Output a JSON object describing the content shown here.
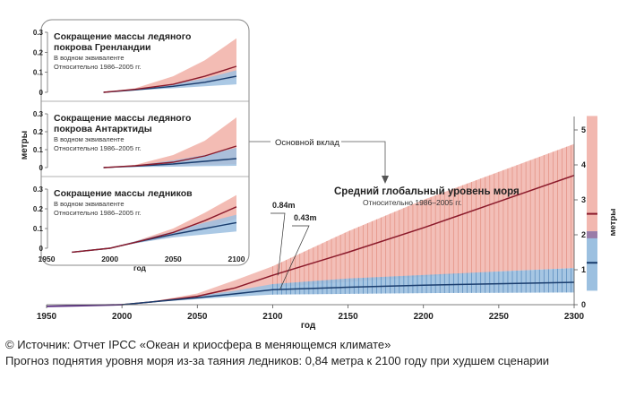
{
  "chart_data": [
    {
      "id": "main",
      "type": "area",
      "title": "Средний глобальный уровень моря",
      "subtitle": "Относительно 1986–2005 гг.",
      "xlabel": "год",
      "ylabel": "метры",
      "xlim": [
        1950,
        2300
      ],
      "ylim": [
        0,
        5.5
      ],
      "xticks": [
        1950,
        2000,
        2050,
        2100,
        2150,
        2200,
        2250,
        2300
      ],
      "yticks": [
        0,
        1,
        2,
        3,
        4,
        5
      ],
      "annotations": {
        "main_contribution": "Основной вклад",
        "high_2100": "0.84m",
        "low_2100": "0.43m"
      },
      "series": [
        {
          "scenario": "high",
          "color": "#8b1a2b",
          "band_color": "#f2b8b0",
          "x": [
            1950,
            1970,
            2000,
            2020,
            2050,
            2075,
            2100,
            2150,
            2200,
            2250,
            2300
          ],
          "values": [
            -0.05,
            -0.03,
            0.0,
            0.08,
            0.24,
            0.48,
            0.84,
            1.5,
            2.2,
            2.95,
            3.7
          ],
          "lower": [
            -0.05,
            -0.03,
            0.0,
            0.07,
            0.18,
            0.32,
            0.5,
            0.65,
            0.8,
            0.95,
            1.05
          ],
          "upper": [
            -0.05,
            -0.03,
            0.0,
            0.09,
            0.32,
            0.7,
            1.1,
            2.1,
            3.0,
            3.8,
            4.6
          ]
        },
        {
          "scenario": "low",
          "color": "#1a3d6e",
          "band_color": "#9cc0e0",
          "x": [
            1950,
            1970,
            2000,
            2020,
            2050,
            2075,
            2100,
            2150,
            2200,
            2250,
            2300
          ],
          "values": [
            -0.05,
            -0.03,
            0.0,
            0.08,
            0.2,
            0.31,
            0.43,
            0.5,
            0.56,
            0.6,
            0.64
          ],
          "lower": [
            -0.05,
            -0.03,
            0.0,
            0.07,
            0.16,
            0.23,
            0.29,
            0.31,
            0.33,
            0.34,
            0.35
          ],
          "upper": [
            -0.05,
            -0.03,
            0.0,
            0.09,
            0.25,
            0.4,
            0.59,
            0.75,
            0.85,
            0.95,
            1.05
          ]
        }
      ],
      "side_bar": {
        "ylabel": "метры",
        "high_range": [
          1.4,
          5.4
        ],
        "high_marker": 2.6,
        "low_range": [
          0.4,
          2.1
        ],
        "low_marker": 1.2,
        "overlap_range": [
          1.9,
          2.1
        ]
      }
    },
    {
      "id": "greenland",
      "type": "area",
      "title_lines": [
        "Сокращение массы ледяного",
        "покрова Гренландии"
      ],
      "notes": [
        "В водном эквиваленте",
        "Относительно 1986–2005 гг."
      ],
      "ylim": [
        0,
        0.3
      ],
      "yticks": [
        0,
        0.1,
        0.2,
        0.3
      ],
      "xlim": [
        1950,
        2100
      ],
      "series": [
        {
          "scenario": "high",
          "x": [
            1995,
            2020,
            2050,
            2075,
            2100
          ],
          "values": [
            0,
            0.015,
            0.04,
            0.08,
            0.13
          ],
          "lower": [
            0,
            0.012,
            0.025,
            0.045,
            0.07
          ],
          "upper": [
            0,
            0.02,
            0.08,
            0.16,
            0.27
          ]
        },
        {
          "scenario": "low",
          "x": [
            1995,
            2020,
            2050,
            2075,
            2100
          ],
          "values": [
            0,
            0.012,
            0.03,
            0.05,
            0.08
          ],
          "lower": [
            0,
            0.01,
            0.02,
            0.03,
            0.04
          ],
          "upper": [
            0,
            0.014,
            0.04,
            0.07,
            0.11
          ]
        }
      ]
    },
    {
      "id": "antarctica",
      "type": "area",
      "title_lines": [
        "Сокращение массы ледяного",
        "покрова Антарктиды"
      ],
      "notes": [
        "В водном эквиваленте",
        "Относительно 1986–2005 гг."
      ],
      "ylim": [
        0,
        0.3
      ],
      "yticks": [
        0,
        0.1,
        0.2,
        0.3
      ],
      "xlim": [
        1950,
        2100
      ],
      "series": [
        {
          "scenario": "high",
          "x": [
            1995,
            2020,
            2050,
            2075,
            2100
          ],
          "values": [
            0,
            0.01,
            0.03,
            0.065,
            0.12
          ],
          "lower": [
            0,
            0.005,
            0.01,
            0.015,
            0.02
          ],
          "upper": [
            0,
            0.015,
            0.07,
            0.15,
            0.28
          ]
        },
        {
          "scenario": "low",
          "x": [
            1995,
            2020,
            2050,
            2075,
            2100
          ],
          "values": [
            0,
            0.008,
            0.02,
            0.035,
            0.05
          ],
          "lower": [
            0,
            0.003,
            0.005,
            0.008,
            0.01
          ],
          "upper": [
            0,
            0.012,
            0.04,
            0.07,
            0.11
          ]
        }
      ]
    },
    {
      "id": "glaciers",
      "type": "area",
      "title_lines": [
        "Сокращение массы ледников"
      ],
      "notes": [
        "В водном эквиваленте",
        "Относительно 1986–2005 гг."
      ],
      "ylim": [
        0,
        0.3
      ],
      "yticks": [
        0,
        0.1,
        0.2,
        0.3
      ],
      "xlim": [
        1950,
        2100
      ],
      "xticks": [
        1950,
        2000,
        2050,
        2100
      ],
      "xlabel": "год",
      "series": [
        {
          "scenario": "high",
          "x": [
            1970,
            2000,
            2020,
            2050,
            2075,
            2100
          ],
          "values": [
            -0.02,
            0.0,
            0.03,
            0.08,
            0.14,
            0.21
          ],
          "lower": [
            -0.02,
            0.0,
            0.025,
            0.06,
            0.1,
            0.15
          ],
          "upper": [
            -0.02,
            0.0,
            0.035,
            0.1,
            0.18,
            0.27
          ]
        },
        {
          "scenario": "low",
          "x": [
            1970,
            2000,
            2020,
            2050,
            2075,
            2100
          ],
          "values": [
            -0.02,
            0.0,
            0.03,
            0.07,
            0.1,
            0.13
          ],
          "lower": [
            -0.02,
            0.0,
            0.025,
            0.055,
            0.07,
            0.085
          ],
          "upper": [
            -0.02,
            0.0,
            0.035,
            0.085,
            0.13,
            0.17
          ]
        }
      ]
    }
  ],
  "inset_ylabel": "метры",
  "caption": {
    "line1": "© Источник: Отчет IPCC «Океан и криосфера в меняющемся климате»",
    "line2": "Прогноз поднятия уровня моря из-за таяния ледников: 0,84 метра к 2100 году при худшем сценарии"
  },
  "colors": {
    "high_line": "#8b1a2b",
    "high_band": "#f2b8b0",
    "low_line": "#1a3d6e",
    "low_band": "#9cc0e0",
    "historic_line": "#5a2d82"
  }
}
